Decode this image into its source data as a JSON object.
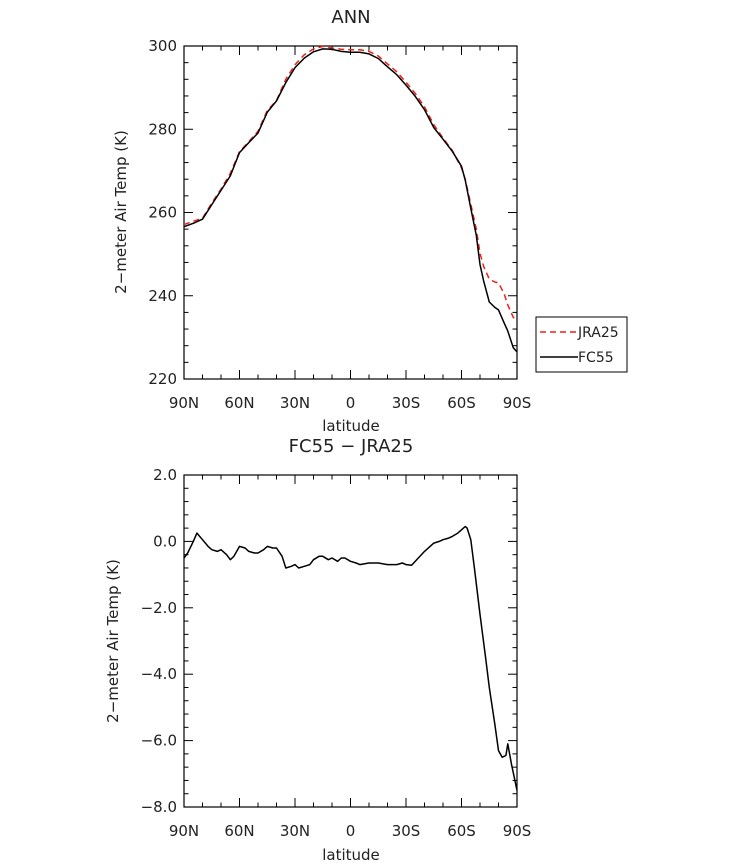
{
  "chart_data": [
    {
      "type": "line",
      "title": "ANN",
      "xlabel": "latitude",
      "ylabel": "2−meter Air Temp (K)",
      "xlim": [
        -90,
        90
      ],
      "ylim": [
        220,
        300
      ],
      "x_ticks": [
        -90,
        -60,
        -30,
        0,
        30,
        60,
        90
      ],
      "x_tick_labels": [
        "90N",
        "60N",
        "30N",
        "0",
        "30S",
        "60S",
        "90S"
      ],
      "y_ticks": [
        220,
        240,
        260,
        280,
        300
      ],
      "y_tick_labels": [
        "220",
        "240",
        "260",
        "280",
        "300"
      ],
      "grid": false,
      "legend_position": "right",
      "x": [
        -90,
        -85,
        -80,
        -75,
        -70,
        -65,
        -60,
        -55,
        -50,
        -45,
        -40,
        -35,
        -30,
        -25,
        -20,
        -15,
        -10,
        -5,
        0,
        5,
        10,
        15,
        20,
        25,
        30,
        35,
        40,
        45,
        50,
        55,
        60,
        62,
        65,
        68,
        70,
        72,
        75,
        78,
        80,
        83,
        85,
        88,
        90
      ],
      "series": [
        {
          "name": "JRA25",
          "color": "#e8221c",
          "dash": true,
          "values": [
            257.1,
            257.9,
            258.6,
            262.3,
            265.6,
            269.4,
            274.6,
            277.0,
            279.5,
            284.5,
            286.9,
            292.0,
            295.5,
            297.9,
            299.3,
            299.9,
            299.5,
            299.2,
            299.1,
            299.1,
            298.7,
            297.6,
            295.7,
            293.8,
            291.3,
            288.6,
            285.4,
            281.1,
            277.9,
            274.9,
            270.7,
            268.0,
            262.0,
            256.0,
            250.2,
            247.0,
            244.0,
            243.3,
            243.1,
            240.5,
            237.8,
            234.8,
            234.0
          ]
        },
        {
          "name": "FC55",
          "color": "#000000",
          "dash": false,
          "values": [
            256.6,
            257.4,
            258.4,
            261.9,
            265.3,
            268.8,
            274.4,
            276.8,
            279.1,
            284.1,
            286.8,
            291.2,
            294.8,
            297.1,
            298.6,
            299.3,
            299.2,
            298.7,
            298.5,
            298.5,
            298.1,
            297.0,
            295.0,
            293.1,
            290.6,
            287.9,
            284.7,
            280.4,
            277.6,
            274.7,
            271.1,
            267.8,
            261.0,
            254.5,
            247.5,
            243.5,
            238.5,
            237.2,
            236.6,
            233.5,
            231.5,
            227.5,
            226.5
          ]
        }
      ]
    },
    {
      "type": "line",
      "title": "FC55 − JRA25",
      "xlabel": "latitude",
      "ylabel": "2−meter Air Temp (K)",
      "xlim": [
        -90,
        90
      ],
      "ylim": [
        -8,
        2
      ],
      "x_ticks": [
        -90,
        -60,
        -30,
        0,
        30,
        60,
        90
      ],
      "x_tick_labels": [
        "90N",
        "60N",
        "30N",
        "0",
        "30S",
        "60S",
        "90S"
      ],
      "y_ticks": [
        -8,
        -6,
        -4,
        -2,
        0,
        2
      ],
      "y_tick_labels": [
        "−8.0",
        "−6.0",
        "−4.0",
        "−2.0",
        "0.0",
        "2.0"
      ],
      "grid": false,
      "x": [
        -90,
        -88,
        -85,
        -83,
        -80,
        -77,
        -75,
        -72,
        -70,
        -67,
        -65,
        -63,
        -60,
        -57,
        -55,
        -52,
        -50,
        -47,
        -45,
        -42,
        -40,
        -37,
        -35,
        -32,
        -30,
        -28,
        -25,
        -22,
        -20,
        -17,
        -15,
        -12,
        -10,
        -7,
        -5,
        -3,
        0,
        3,
        5,
        10,
        15,
        20,
        25,
        28,
        30,
        33,
        35,
        40,
        45,
        48,
        50,
        53,
        55,
        58,
        60,
        62,
        63,
        65,
        67,
        70,
        73,
        75,
        78,
        80,
        82,
        84,
        85,
        87,
        90
      ],
      "values": [
        -0.5,
        -0.35,
        0.0,
        0.25,
        0.05,
        -0.15,
        -0.25,
        -0.3,
        -0.25,
        -0.4,
        -0.55,
        -0.45,
        -0.15,
        -0.2,
        -0.3,
        -0.35,
        -0.35,
        -0.25,
        -0.15,
        -0.2,
        -0.2,
        -0.45,
        -0.8,
        -0.75,
        -0.7,
        -0.8,
        -0.75,
        -0.7,
        -0.55,
        -0.45,
        -0.45,
        -0.55,
        -0.5,
        -0.6,
        -0.5,
        -0.5,
        -0.6,
        -0.65,
        -0.7,
        -0.65,
        -0.65,
        -0.7,
        -0.7,
        -0.65,
        -0.7,
        -0.72,
        -0.6,
        -0.3,
        -0.05,
        0.0,
        0.05,
        0.1,
        0.15,
        0.25,
        0.35,
        0.45,
        0.4,
        0.05,
        -0.8,
        -2.2,
        -3.5,
        -4.4,
        -5.5,
        -6.3,
        -6.5,
        -6.45,
        -6.1,
        -6.7,
        -7.5
      ],
      "color": "#000000"
    }
  ]
}
